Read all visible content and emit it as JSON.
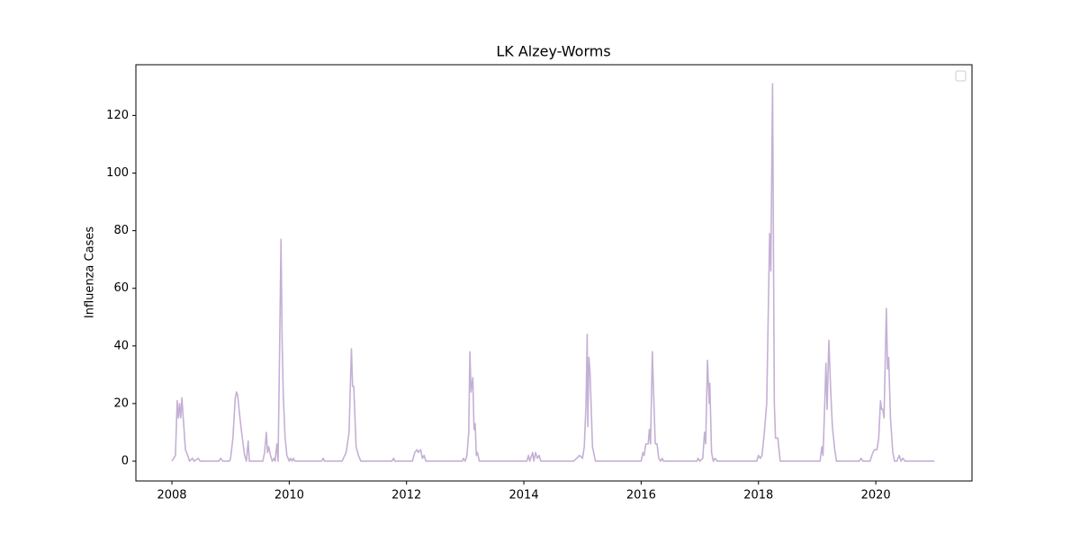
{
  "chart_data": {
    "type": "line",
    "title": "LK Alzey-Worms",
    "y_label": "Influenza Cases",
    "color": "#c5b0d5",
    "x": [
      2008.0,
      2008.06,
      2008.09,
      2008.11,
      2008.13,
      2008.15,
      2008.17,
      2008.2,
      2008.23,
      2008.27,
      2008.3,
      2008.35,
      2008.38,
      2008.45,
      2008.48,
      2008.8,
      2008.83,
      2008.87,
      2008.98,
      2009.0,
      2009.04,
      2009.08,
      2009.1,
      2009.12,
      2009.16,
      2009.2,
      2009.24,
      2009.27,
      2009.3,
      2009.32,
      2009.55,
      2009.58,
      2009.61,
      2009.63,
      2009.65,
      2009.68,
      2009.71,
      2009.74,
      2009.76,
      2009.79,
      2009.81,
      2009.83,
      2009.86,
      2009.88,
      2009.9,
      2009.93,
      2009.96,
      2010.0,
      2010.02,
      2010.05,
      2010.07,
      2010.1,
      2010.55,
      2010.58,
      2010.6,
      2010.9,
      2010.97,
      2011.02,
      2011.06,
      2011.08,
      2011.1,
      2011.14,
      2011.18,
      2011.22,
      2011.75,
      2011.78,
      2011.8,
      2012.1,
      2012.14,
      2012.18,
      2012.2,
      2012.24,
      2012.27,
      2012.3,
      2012.33,
      2012.95,
      2012.97,
      2013.0,
      2013.03,
      2013.06,
      2013.08,
      2013.1,
      2013.13,
      2013.15,
      2013.17,
      2013.19,
      2013.21,
      2013.24,
      2014.05,
      2014.08,
      2014.1,
      2014.15,
      2014.17,
      2014.2,
      2014.23,
      2014.26,
      2014.29,
      2014.85,
      2014.9,
      2014.95,
      2015.0,
      2015.03,
      2015.06,
      2015.08,
      2015.09,
      2015.11,
      2015.13,
      2015.17,
      2015.22,
      2016.0,
      2016.03,
      2016.05,
      2016.08,
      2016.12,
      2016.14,
      2016.16,
      2016.19,
      2016.21,
      2016.24,
      2016.27,
      2016.3,
      2016.33,
      2016.36,
      2016.38,
      2016.95,
      2016.97,
      2017.0,
      2017.05,
      2017.08,
      2017.1,
      2017.13,
      2017.16,
      2017.17,
      2017.2,
      2017.23,
      2017.26,
      2017.3,
      2017.97,
      2018.0,
      2018.03,
      2018.06,
      2018.1,
      2018.14,
      2018.19,
      2018.21,
      2018.24,
      2018.27,
      2018.29,
      2018.33,
      2018.37,
      2019.05,
      2019.08,
      2019.1,
      2019.13,
      2019.15,
      2019.17,
      2019.2,
      2019.23,
      2019.26,
      2019.28,
      2019.3,
      2019.33,
      2019.72,
      2019.75,
      2019.78,
      2019.9,
      2019.95,
      2019.98,
      2020.02,
      2020.05,
      2020.08,
      2020.1,
      2020.12,
      2020.14,
      2020.18,
      2020.2,
      2020.22,
      2020.25,
      2020.29,
      2020.32,
      2020.36,
      2020.4,
      2020.43,
      2020.46,
      2020.5,
      2021.0
    ],
    "values": [
      0,
      2,
      21,
      15,
      20,
      15,
      22,
      13,
      4,
      2,
      0,
      1,
      0,
      1,
      0,
      0,
      1,
      0,
      0,
      1,
      8,
      22,
      24,
      23,
      15,
      8,
      2,
      0,
      7,
      0,
      0,
      3,
      10,
      3,
      5,
      2,
      0,
      1,
      0,
      6,
      0,
      30,
      77,
      40,
      22,
      8,
      2,
      0,
      1,
      0,
      1,
      0,
      0,
      1,
      0,
      0,
      3,
      10,
      39,
      26,
      26,
      5,
      2,
      0,
      0,
      1,
      0,
      0,
      3,
      4,
      3,
      4,
      1,
      2,
      0,
      0,
      1,
      0,
      2,
      10,
      38,
      24,
      29,
      11,
      13,
      2,
      3,
      0,
      0,
      2,
      0,
      3,
      0,
      3,
      1,
      2,
      0,
      0,
      1,
      2,
      1,
      5,
      20,
      44,
      12,
      36,
      30,
      5,
      0,
      0,
      3,
      2,
      6,
      6,
      11,
      6,
      38,
      25,
      6,
      6,
      1,
      0,
      1,
      0,
      0,
      1,
      0,
      1,
      10,
      6,
      35,
      20,
      27,
      3,
      0,
      1,
      0,
      0,
      2,
      1,
      2,
      10,
      20,
      79,
      66,
      131,
      20,
      8,
      8,
      0,
      0,
      5,
      2,
      20,
      34,
      18,
      42,
      25,
      12,
      8,
      4,
      0,
      0,
      1,
      0,
      0,
      3,
      4,
      4,
      8,
      21,
      18,
      18,
      15,
      53,
      32,
      36,
      15,
      3,
      0,
      0,
      2,
      0,
      1,
      0,
      0
    ],
    "xlim": [
      2007.386,
      2021.64
    ],
    "xticks": [
      2008,
      2010,
      2012,
      2014,
      2016,
      2018,
      2020
    ],
    "ylim": [
      -6.87,
      137.6
    ],
    "yticks": [
      0,
      20,
      40,
      60,
      80,
      100,
      120
    ]
  }
}
